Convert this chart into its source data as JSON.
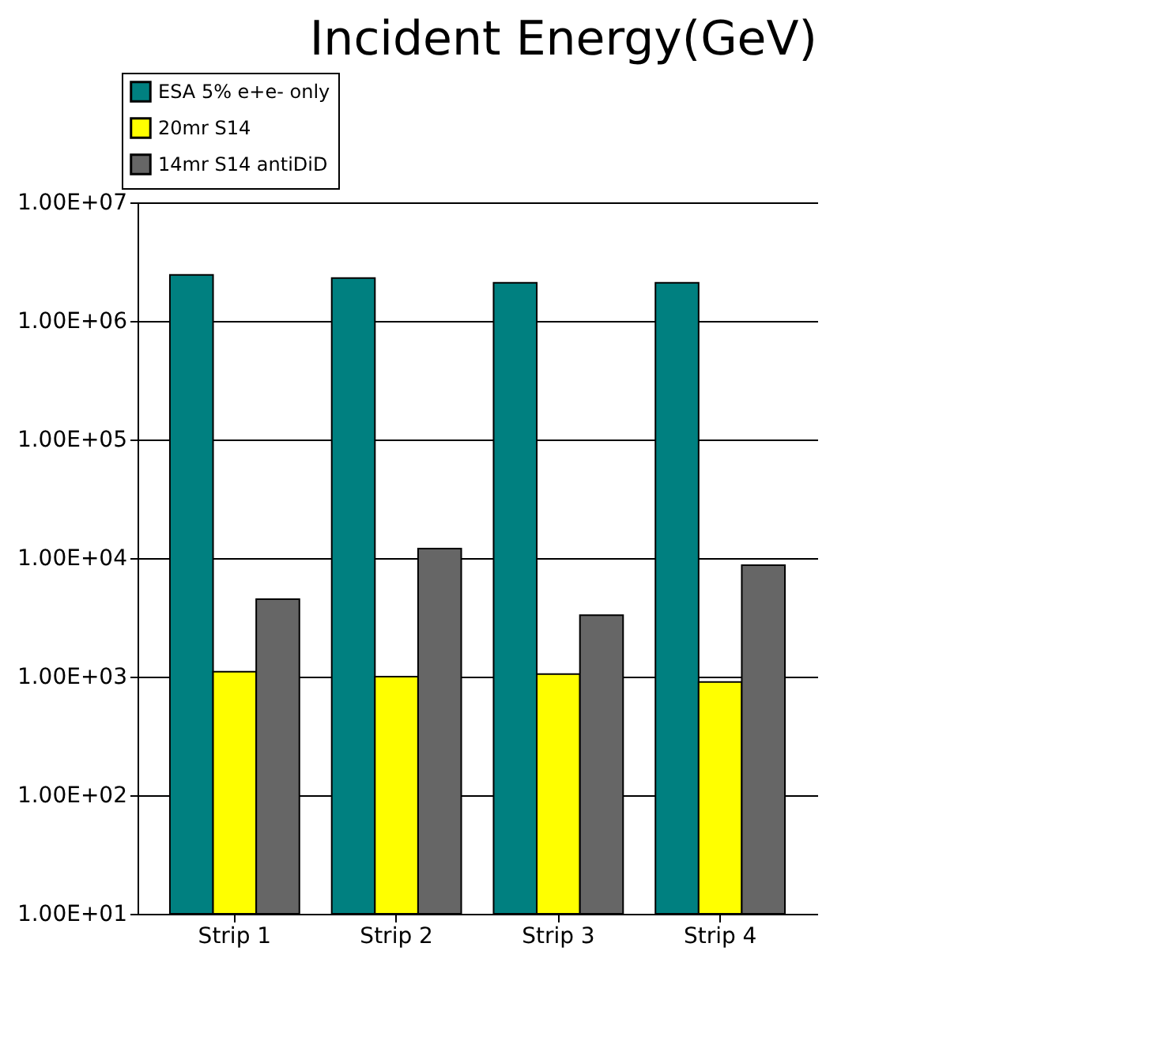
{
  "chart_data": {
    "type": "bar",
    "title": "Incident Energy(GeV)",
    "categories": [
      "Strip 1",
      "Strip 2",
      "Strip 3",
      "Strip 4"
    ],
    "series": [
      {
        "name": "ESA 5% e+e- only",
        "color": "#008080",
        "values": [
          2450000,
          2300000,
          2100000,
          2100000
        ]
      },
      {
        "name": "20mr S14",
        "color": "#ffff00",
        "values": [
          1100,
          1000,
          1050,
          900
        ]
      },
      {
        "name": "14mr S14 antiDiD",
        "color": "#666666",
        "values": [
          4500,
          12000,
          3300,
          8700
        ]
      }
    ],
    "log": "y",
    "ylim": [
      10,
      10000000
    ],
    "yticks": [
      {
        "value": 10,
        "label": "1.00E+01"
      },
      {
        "value": 100,
        "label": "1.00E+02"
      },
      {
        "value": 1000,
        "label": "1.00E+03"
      },
      {
        "value": 10000,
        "label": "1.00E+04"
      },
      {
        "value": 100000,
        "label": "1.00E+05"
      },
      {
        "value": 1000000,
        "label": "1.00E+06"
      },
      {
        "value": 10000000,
        "label": "1.00E+07"
      }
    ],
    "grid": "y",
    "legend": "top left"
  }
}
